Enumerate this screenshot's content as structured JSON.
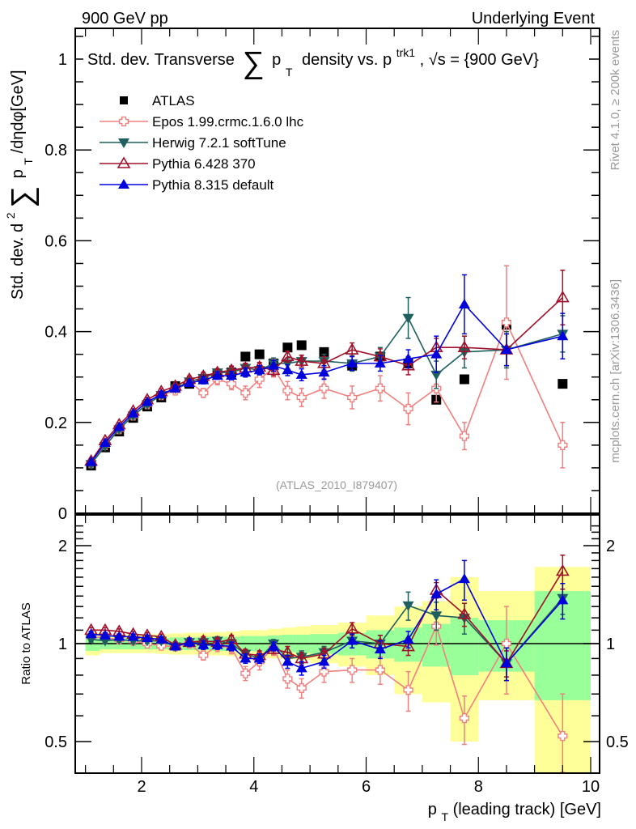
{
  "header": {
    "left": "900 GeV pp",
    "right": "Underlying Event"
  },
  "side_labels": {
    "rivet": "Rivet 4.1.0, ≥ 200k events",
    "mcplots": "mcplots.cern.ch [arXiv:1306.3436]"
  },
  "chart_data": [
    {
      "type": "line",
      "panel": "main",
      "title": "Std. dev. Transverse ∑ p_T density vs. p_T^trk1, √s = {900 GeV}",
      "title_parts": {
        "pre": "Std. dev. Transverse",
        "sum": "∑",
        "p": "p",
        "sub_T": "T",
        "mid": "density vs. p",
        "sup": "trk1",
        "post": ", √s = {900 GeV}"
      },
      "watermark": "(ATLAS_2010_I879407)",
      "ylabel": "Std. dev. d²∑p_T/dηdφ [GeV]",
      "ylabel_parts": {
        "pre": "Std. dev. d",
        "sup": "2",
        "sum": "∑",
        "p": "p",
        "sub": "T",
        "post": "/dηdφ[GeV]"
      },
      "xlim": [
        0.8,
        10.05
      ],
      "ylim": [
        0,
        1.06
      ],
      "yticks": [
        0,
        0.2,
        0.4,
        0.6,
        0.8,
        1
      ],
      "ytick_labels": [
        "0",
        "0.2",
        "0.4",
        "0.6",
        "0.8",
        "1"
      ],
      "legend_position": "top-left",
      "x": [
        1.1,
        1.35,
        1.6,
        1.85,
        2.1,
        2.35,
        2.6,
        2.85,
        3.1,
        3.35,
        3.6,
        3.85,
        4.1,
        4.35,
        4.6,
        4.85,
        5.25,
        5.75,
        6.25,
        6.75,
        7.25,
        7.75,
        8.5,
        9.5
      ],
      "series": [
        {
          "name": "ATLAS",
          "color": "#000000",
          "marker": "square",
          "values": [
            0.105,
            0.145,
            0.18,
            0.21,
            0.235,
            0.255,
            0.28,
            0.285,
            0.295,
            0.305,
            0.31,
            0.345,
            0.35,
            0.33,
            0.365,
            0.37,
            0.355,
            0.325,
            0.345,
            0.33,
            0.25,
            0.295,
            0.415,
            0.285
          ],
          "errors": [
            0,
            0,
            0,
            0,
            0,
            0,
            0,
            0,
            0,
            0,
            0,
            0,
            0,
            0,
            0,
            0,
            0,
            0,
            0,
            0,
            0,
            0,
            0,
            0
          ]
        },
        {
          "name": "Epos 1.99.crmc.1.6.0 lhc",
          "color": "#f08080",
          "marker": "open-cross",
          "values": [
            0.11,
            0.15,
            0.185,
            0.215,
            0.24,
            0.26,
            0.27,
            0.29,
            0.265,
            0.295,
            0.285,
            0.265,
            0.295,
            0.32,
            0.27,
            0.255,
            0.275,
            0.255,
            0.275,
            0.23,
            0.275,
            0.17,
            0.42,
            0.15
          ],
          "errors": [
            0.003,
            0.004,
            0.005,
            0.006,
            0.006,
            0.007,
            0.008,
            0.009,
            0.01,
            0.012,
            0.013,
            0.015,
            0.018,
            0.02,
            0.02,
            0.02,
            0.022,
            0.025,
            0.028,
            0.035,
            0.03,
            0.03,
            0.125,
            0.05
          ]
        },
        {
          "name": "Herwig 7.2.1 softTune",
          "color": "#1f5f5f",
          "marker": "down-triangle",
          "values": [
            0.108,
            0.148,
            0.185,
            0.215,
            0.24,
            0.26,
            0.275,
            0.29,
            0.298,
            0.31,
            0.31,
            0.32,
            0.315,
            0.33,
            0.33,
            0.335,
            0.335,
            0.33,
            0.345,
            0.43,
            0.305,
            0.355,
            0.36,
            0.395
          ],
          "errors": [
            0.002,
            0.003,
            0.004,
            0.005,
            0.005,
            0.006,
            0.006,
            0.007,
            0.008,
            0.008,
            0.009,
            0.01,
            0.01,
            0.012,
            0.012,
            0.013,
            0.015,
            0.017,
            0.02,
            0.045,
            0.03,
            0.035,
            0.04,
            0.04
          ]
        },
        {
          "name": "Pythia 6.428 370",
          "color": "#a0102a",
          "marker": "open-up-triangle",
          "values": [
            0.115,
            0.16,
            0.195,
            0.225,
            0.25,
            0.268,
            0.28,
            0.295,
            0.302,
            0.31,
            0.315,
            0.32,
            0.322,
            0.315,
            0.345,
            0.335,
            0.33,
            0.36,
            0.345,
            0.325,
            0.365,
            0.365,
            0.36,
            0.475
          ],
          "errors": [
            0.002,
            0.003,
            0.004,
            0.005,
            0.005,
            0.006,
            0.006,
            0.007,
            0.008,
            0.008,
            0.009,
            0.01,
            0.01,
            0.012,
            0.012,
            0.013,
            0.015,
            0.015,
            0.017,
            0.02,
            0.02,
            0.025,
            0.035,
            0.06
          ]
        },
        {
          "name": "Pythia 8.315 default",
          "color": "#0000dd",
          "marker": "up-triangle",
          "values": [
            0.113,
            0.155,
            0.19,
            0.22,
            0.245,
            0.262,
            0.275,
            0.287,
            0.293,
            0.303,
            0.303,
            0.31,
            0.315,
            0.325,
            0.315,
            0.305,
            0.31,
            0.33,
            0.33,
            0.34,
            0.35,
            0.46,
            0.36,
            0.39
          ],
          "errors": [
            0.002,
            0.003,
            0.004,
            0.005,
            0.005,
            0.006,
            0.006,
            0.007,
            0.008,
            0.008,
            0.009,
            0.01,
            0.01,
            0.012,
            0.012,
            0.013,
            0.015,
            0.015,
            0.017,
            0.02,
            0.04,
            0.065,
            0.035,
            0.05
          ]
        }
      ]
    },
    {
      "type": "line",
      "panel": "ratio",
      "ylabel": "Ratio to ATLAS",
      "xlabel": "p_T (leading track) [GeV]",
      "xlabel_parts": {
        "p": "p",
        "sub": "T",
        "post": " (leading track) [GeV]"
      },
      "yscale": "log",
      "ylim": [
        0.4,
        2.35
      ],
      "yticks": [
        0.5,
        1,
        2
      ],
      "ytick_labels": [
        "0.5",
        "1",
        "2"
      ],
      "xticks": [
        2,
        4,
        6,
        8,
        10
      ],
      "xtick_labels": [
        "2",
        "4",
        "6",
        "8",
        "10"
      ],
      "reference_line": 1,
      "bins": [
        [
          1.0,
          1.25
        ],
        [
          1.25,
          1.5
        ],
        [
          1.5,
          1.75
        ],
        [
          1.75,
          2.0
        ],
        [
          2.0,
          2.25
        ],
        [
          2.25,
          2.5
        ],
        [
          2.5,
          2.75
        ],
        [
          2.75,
          3.0
        ],
        [
          3.0,
          3.25
        ],
        [
          3.25,
          3.5
        ],
        [
          3.5,
          3.75
        ],
        [
          3.75,
          4.0
        ],
        [
          4.0,
          4.25
        ],
        [
          4.25,
          4.5
        ],
        [
          4.5,
          4.75
        ],
        [
          4.75,
          5.0
        ],
        [
          5.0,
          5.5
        ],
        [
          5.5,
          6.0
        ],
        [
          6.0,
          6.5
        ],
        [
          6.5,
          7.0
        ],
        [
          7.0,
          7.5
        ],
        [
          7.5,
          8.0
        ],
        [
          8.0,
          9.0
        ],
        [
          9.0,
          10.0
        ]
      ],
      "band_inner": [
        [
          0.95,
          1.05
        ],
        [
          0.96,
          1.04
        ],
        [
          0.96,
          1.04
        ],
        [
          0.96,
          1.04
        ],
        [
          0.96,
          1.04
        ],
        [
          0.96,
          1.04
        ],
        [
          0.955,
          1.045
        ],
        [
          0.955,
          1.045
        ],
        [
          0.955,
          1.05
        ],
        [
          0.95,
          1.05
        ],
        [
          0.95,
          1.05
        ],
        [
          0.95,
          1.055
        ],
        [
          0.945,
          1.055
        ],
        [
          0.94,
          1.06
        ],
        [
          0.94,
          1.065
        ],
        [
          0.935,
          1.065
        ],
        [
          0.93,
          1.07
        ],
        [
          0.92,
          1.08
        ],
        [
          0.9,
          1.1
        ],
        [
          0.88,
          1.12
        ],
        [
          0.85,
          1.15
        ],
        [
          0.8,
          1.2
        ],
        [
          0.82,
          1.18
        ],
        [
          0.67,
          1.45
        ]
      ],
      "band_outer": [
        [
          0.92,
          1.08
        ],
        [
          0.935,
          1.065
        ],
        [
          0.935,
          1.065
        ],
        [
          0.935,
          1.07
        ],
        [
          0.935,
          1.07
        ],
        [
          0.93,
          1.07
        ],
        [
          0.925,
          1.075
        ],
        [
          0.925,
          1.08
        ],
        [
          0.92,
          1.08
        ],
        [
          0.92,
          1.085
        ],
        [
          0.915,
          1.09
        ],
        [
          0.91,
          1.1
        ],
        [
          0.905,
          1.1
        ],
        [
          0.9,
          1.11
        ],
        [
          0.895,
          1.12
        ],
        [
          0.89,
          1.13
        ],
        [
          0.87,
          1.14
        ],
        [
          0.85,
          1.16
        ],
        [
          0.8,
          1.22
        ],
        [
          0.7,
          1.3
        ],
        [
          0.66,
          1.35
        ],
        [
          0.5,
          1.6
        ],
        [
          0.67,
          1.45
        ],
        [
          0.35,
          1.72
        ]
      ],
      "series": [
        {
          "name": "Epos 1.99.crmc.1.6.0 lhc",
          "color": "#f08080",
          "marker": "open-cross",
          "values": [
            1.05,
            1.04,
            1.03,
            1.02,
            1.0,
            0.985,
            0.98,
            1.0,
            0.92,
            0.985,
            0.97,
            0.81,
            0.88,
            0.97,
            0.78,
            0.73,
            0.82,
            0.83,
            0.83,
            0.72,
            1.13,
            0.59,
            1.0,
            0.52
          ],
          "errors": [
            0.02,
            0.02,
            0.02,
            0.02,
            0.02,
            0.02,
            0.03,
            0.03,
            0.03,
            0.04,
            0.04,
            0.04,
            0.05,
            0.05,
            0.05,
            0.05,
            0.06,
            0.07,
            0.08,
            0.1,
            0.14,
            0.1,
            0.3,
            0.18
          ]
        },
        {
          "name": "Herwig 7.2.1 softTune",
          "color": "#1f5f5f",
          "marker": "down-triangle",
          "values": [
            1.03,
            1.02,
            1.03,
            1.02,
            1.02,
            1.02,
            0.98,
            1.01,
            1.01,
            1.02,
            1.0,
            0.93,
            0.9,
            1.0,
            0.9,
            0.91,
            0.94,
            1.02,
            1.0,
            1.31,
            1.22,
            1.2,
            0.87,
            1.38
          ],
          "errors": [
            0.02,
            0.02,
            0.02,
            0.02,
            0.02,
            0.02,
            0.02,
            0.03,
            0.03,
            0.03,
            0.03,
            0.03,
            0.03,
            0.03,
            0.04,
            0.04,
            0.04,
            0.05,
            0.06,
            0.13,
            0.12,
            0.13,
            0.1,
            0.15
          ]
        },
        {
          "name": "Pythia 6.428 370",
          "color": "#a0102a",
          "marker": "open-up-triangle",
          "values": [
            1.1,
            1.1,
            1.09,
            1.07,
            1.06,
            1.05,
            0.99,
            1.01,
            1.02,
            1.01,
            1.03,
            0.93,
            0.92,
            0.96,
            0.94,
            0.9,
            0.93,
            1.11,
            1.0,
            0.98,
            1.46,
            1.23,
            0.87,
            1.67
          ],
          "errors": [
            0.02,
            0.02,
            0.02,
            0.02,
            0.02,
            0.02,
            0.02,
            0.03,
            0.03,
            0.03,
            0.03,
            0.03,
            0.03,
            0.03,
            0.04,
            0.04,
            0.04,
            0.05,
            0.06,
            0.06,
            0.08,
            0.1,
            0.08,
            0.2
          ]
        },
        {
          "name": "Pythia 8.315 default",
          "color": "#0000dd",
          "marker": "up-triangle",
          "values": [
            1.07,
            1.06,
            1.05,
            1.05,
            1.04,
            1.03,
            0.98,
            1.01,
            0.99,
            0.99,
            0.98,
            0.9,
            0.9,
            0.98,
            0.88,
            0.84,
            0.88,
            1.02,
            0.96,
            1.03,
            1.42,
            1.58,
            0.87,
            1.36
          ],
          "errors": [
            0.02,
            0.02,
            0.02,
            0.02,
            0.02,
            0.02,
            0.02,
            0.03,
            0.03,
            0.03,
            0.03,
            0.03,
            0.03,
            0.03,
            0.04,
            0.04,
            0.04,
            0.05,
            0.06,
            0.06,
            0.15,
            0.22,
            0.1,
            0.17
          ]
        }
      ]
    }
  ]
}
